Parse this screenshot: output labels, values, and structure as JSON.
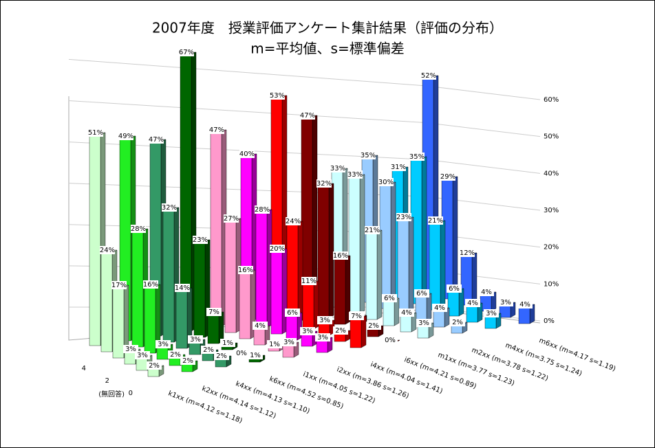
{
  "chart_data": {
    "type": "bar3d",
    "title": "2007年度　授業評価アンケート集計結果（評価の分布）",
    "subtitle": "m=平均値、s=標準偏差",
    "categories": [
      "0",
      null,
      "2",
      null,
      "4",
      null
    ],
    "category_note": "(無回答)",
    "ylim": [
      0,
      60
    ],
    "yticks": [
      {
        "value": 0,
        "label": "0%"
      },
      {
        "value": 10,
        "label": "10%"
      },
      {
        "value": 20,
        "label": "20%"
      },
      {
        "value": 30,
        "label": "30%"
      },
      {
        "value": 40,
        "label": "40%"
      },
      {
        "value": 50,
        "label": "50%"
      },
      {
        "value": 60,
        "label": "60%"
      }
    ],
    "grid": true,
    "series": [
      {
        "name": "k1xx (m=4.12 s=1.18)",
        "color": "#ccffcc",
        "values": [
          2,
          3,
          3,
          17,
          24,
          51
        ],
        "value_labels": [
          "2%",
          "3%",
          "3%",
          "17%",
          "24%",
          "51%"
        ]
      },
      {
        "name": "k2xx (m=4.14 s=1.12)",
        "color": "#22ee22",
        "values": [
          2,
          2,
          3,
          16,
          28,
          49
        ],
        "value_labels": [
          "2%",
          "2%",
          "3%",
          "16%",
          "28%",
          "49%"
        ]
      },
      {
        "name": "k4xx (m=4.13 s=1.10)",
        "color": "#339966",
        "values": [
          2,
          2,
          3,
          14,
          32,
          47
        ],
        "value_labels": [
          "2%",
          "2%",
          "3%",
          "14%",
          "32%",
          "47%"
        ]
      },
      {
        "name": "k6xx (m=4.52 s=0.85)",
        "color": "#006600",
        "values": [
          1,
          0,
          1,
          7,
          23,
          67
        ],
        "value_labels": [
          "1%",
          "0%",
          "1%",
          "7%",
          "23%",
          "67%"
        ]
      },
      {
        "name": "i1xx (m=4.05 s=1.22)",
        "color": "#ff99cc",
        "values": [
          3,
          1,
          4,
          16,
          27,
          47
        ],
        "value_labels": [
          "3%",
          "1%",
          "4%",
          "16%",
          "27%",
          "47%"
        ]
      },
      {
        "name": "i2xx (m=3.86 s=1.26)",
        "color": "#ff00ff",
        "values": [
          3,
          3,
          6,
          20,
          28,
          40
        ],
        "value_labels": [
          "3%",
          "3%",
          "6%",
          "20%",
          "28%",
          "40%"
        ]
      },
      {
        "name": "i4xx (m=4.04 s=1.41)",
        "color": "#ff0000",
        "values": [
          7,
          2,
          3,
          11,
          24,
          53
        ],
        "value_labels": [
          "7%",
          "2%",
          "3%",
          "11%",
          "24%",
          "53%"
        ]
      },
      {
        "name": "i6xx (m=4.21 s=0.89)",
        "color": "#800000",
        "values": [
          0,
          2,
          3,
          16,
          32,
          47
        ],
        "value_labels": [
          "0%",
          "2%",
          "3%",
          "16%",
          "32%",
          "47%"
        ]
      },
      {
        "name": "m1xx (m=3.77 s=1.23)",
        "color": "#ccffff",
        "values": [
          3,
          4,
          6,
          21,
          33,
          33
        ],
        "value_labels": [
          "3%",
          "4%",
          "6%",
          "21%",
          "33%",
          "33%"
        ]
      },
      {
        "name": "m2xx (m=3.78 s=1.22)",
        "color": "#99ccff",
        "values": [
          2,
          4,
          6,
          23,
          30,
          35
        ],
        "value_labels": [
          "2%",
          "4%",
          "6%",
          "23%",
          "30%",
          "35%"
        ]
      },
      {
        "name": "m4xx (m=3.75 s=1.24)",
        "color": "#00ccff",
        "values": [
          3,
          4,
          6,
          21,
          35,
          31
        ],
        "value_labels": [
          "3%",
          "4%",
          "6%",
          "21%",
          "35%",
          "31%"
        ]
      },
      {
        "name": "m6xx (m=4.17 s=1.19)",
        "color": "#3366ff",
        "values": [
          4,
          3,
          4,
          12,
          29,
          52
        ],
        "value_labels": [
          "4%",
          "3%",
          "4%",
          "12%",
          "29%",
          "52%"
        ]
      }
    ]
  }
}
